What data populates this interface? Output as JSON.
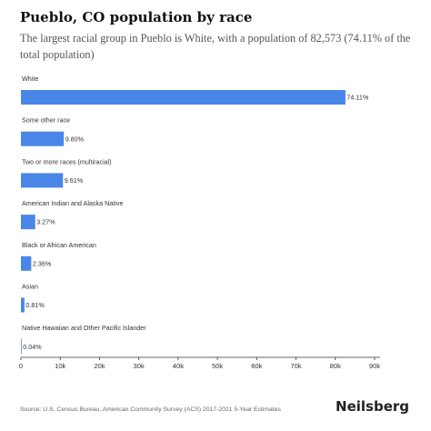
{
  "title": "Pueblo, CO population by race",
  "subtitle": "The largest racial group in Pueblo is White, with a population of 82,573 (74.11% of the total population)",
  "source": "Source: U.S. Census Bureau, American Community Survey (ACS) 2017-2021 5-Year Estimates",
  "brand": "Neilsberg",
  "chart_data": {
    "type": "bar",
    "orientation": "horizontal",
    "categories": [
      "White",
      "Some other race",
      "Two or more races (multiracial)",
      "American Indian and Alaska Native",
      "Black or African American",
      "Asian",
      "Native Hawaiian and Other Pacific Islander"
    ],
    "values": [
      82573,
      10919,
      10707,
      3643,
      2630,
      902,
      45
    ],
    "value_labels": [
      "74.11%",
      "9.80%",
      "9.61%",
      "3.27%",
      "2.36%",
      "0.81%",
      "0.04%"
    ],
    "x_ticks": [
      "0",
      "10k",
      "20k",
      "30k",
      "40k",
      "50k",
      "60k",
      "70k",
      "80k",
      "90k"
    ],
    "xlim": [
      0,
      90000
    ],
    "bar_color": "#4a86e8",
    "grid": false,
    "legend": "none"
  }
}
